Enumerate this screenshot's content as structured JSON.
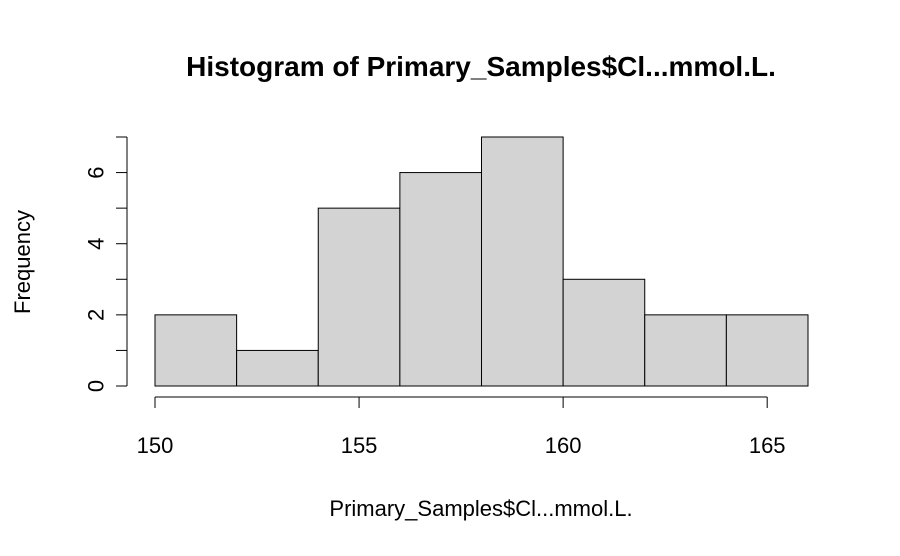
{
  "chart_data": {
    "type": "bar",
    "title": "Histogram of Primary_Samples$Cl...mmol.L.",
    "xlabel": "Primary_Samples$Cl...mmol.L.",
    "ylabel": "Frequency",
    "bin_edges": [
      150,
      152,
      154,
      156,
      158,
      160,
      162,
      164,
      166
    ],
    "values": [
      2,
      1,
      5,
      6,
      7,
      3,
      2,
      2
    ],
    "xlim": [
      150,
      166
    ],
    "ylim": [
      0,
      7
    ],
    "x_ticks": [
      150,
      155,
      160,
      165
    ],
    "y_ticks": [
      0,
      2,
      4,
      6
    ],
    "y_minor_ticks": [
      1,
      3,
      5,
      7
    ],
    "bar_color": "#d3d3d3",
    "grid": false
  }
}
